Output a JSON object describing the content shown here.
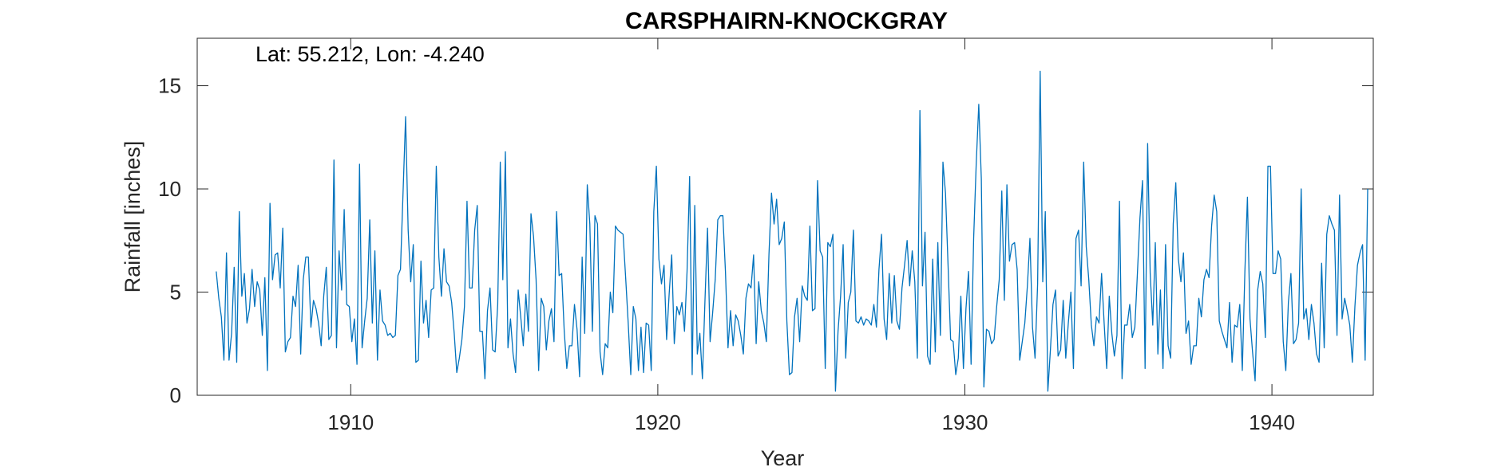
{
  "chart_data": {
    "type": "line",
    "title": "CARSPHAIRN-KNOCKGRAY",
    "annotation": "Lat: 55.212, Lon: -4.240",
    "xlabel": "Year",
    "ylabel": "Rainfall [inches]",
    "xlim": [
      1905.0,
      1943.3
    ],
    "ylim": [
      0,
      17.3
    ],
    "xticks": [
      1910,
      1920,
      1930,
      1940
    ],
    "yticks": [
      0,
      5,
      10,
      15
    ],
    "grid": false,
    "box": true,
    "color": "#0072BD",
    "x_start": 1905.62,
    "x_step": 0.08333,
    "series": [
      {
        "values": [
          6.0,
          4.7,
          3.8,
          1.7,
          6.9,
          1.7,
          3.0,
          6.2,
          1.6,
          8.9,
          4.8,
          5.9,
          3.5,
          4.2,
          6.1,
          4.3,
          5.5,
          5.1,
          2.9,
          5.7,
          1.2,
          9.3,
          5.6,
          6.8,
          6.9,
          5.2,
          8.1,
          2.1,
          2.6,
          2.8,
          4.8,
          4.3,
          6.3,
          2.0,
          5.6,
          6.7,
          6.7,
          3.3,
          4.6,
          4.2,
          3.5,
          2.4,
          4.8,
          6.2,
          2.7,
          2.9,
          11.4,
          2.3,
          7.0,
          5.1,
          9.0,
          4.4,
          4.3,
          2.6,
          3.7,
          1.5,
          11.2,
          2.3,
          3.6,
          4.7,
          8.5,
          3.5,
          7.0,
          1.7,
          5.1,
          3.6,
          3.4,
          2.9,
          3.0,
          2.8,
          2.9,
          5.8,
          6.1,
          9.8,
          13.5,
          8.0,
          5.5,
          7.3,
          1.6,
          1.7,
          6.5,
          3.5,
          4.6,
          2.8,
          5.1,
          5.2,
          11.1,
          6.7,
          4.8,
          7.1,
          5.5,
          5.3,
          4.5,
          3.0,
          1.1,
          1.8,
          2.7,
          4.3,
          9.4,
          5.2,
          5.2,
          8.0,
          9.2,
          3.1,
          3.1,
          0.8,
          4.1,
          5.2,
          2.2,
          2.1,
          4.4,
          11.3,
          5.6,
          11.8,
          2.3,
          3.7,
          2.0,
          1.1,
          5.1,
          3.8,
          2.4,
          4.9,
          3.1,
          8.8,
          7.7,
          5.6,
          1.2,
          4.7,
          4.3,
          2.2,
          3.6,
          4.2,
          2.6,
          8.9,
          5.8,
          5.9,
          3.1,
          1.3,
          2.4,
          2.4,
          4.4,
          3.2,
          0.9,
          6.7,
          3.0,
          10.2,
          8.3,
          3.1,
          8.7,
          8.3,
          2.1,
          1.0,
          2.5,
          2.3,
          5.0,
          4.0,
          8.2,
          8.0,
          7.9,
          7.8,
          5.7,
          3.5,
          1.0,
          4.3,
          3.7,
          1.2,
          3.3,
          1.1,
          3.5,
          3.4,
          1.2,
          8.9,
          11.1,
          6.6,
          5.4,
          6.3,
          2.7,
          4.9,
          6.8,
          2.5,
          4.3,
          3.9,
          4.5,
          3.1,
          6.0,
          10.6,
          1.0,
          9.2,
          2.0,
          3.0,
          0.8,
          4.6,
          8.1,
          2.6,
          4.0,
          5.6,
          8.5,
          8.7,
          8.7,
          6.0,
          2.3,
          4.1,
          2.4,
          3.9,
          3.6,
          2.9,
          2.0,
          4.7,
          5.4,
          5.2,
          6.8,
          2.5,
          5.5,
          4.1,
          3.5,
          2.6,
          6.8,
          9.8,
          8.3,
          9.5,
          7.3,
          7.6,
          8.4,
          3.6,
          1.0,
          1.1,
          3.8,
          4.7,
          2.6,
          5.3,
          4.8,
          4.6,
          8.2,
          4.1,
          4.2,
          10.4,
          7.0,
          6.7,
          1.3,
          7.4,
          7.2,
          7.8,
          0.2,
          3.1,
          4.8,
          7.3,
          1.8,
          4.5,
          5.0,
          8.0,
          3.6,
          3.5,
          3.8,
          3.4,
          3.7,
          3.6,
          3.4,
          4.4,
          3.3,
          6.1,
          7.8,
          3.7,
          2.7,
          5.9,
          3.5,
          5.8,
          3.6,
          3.2,
          5.2,
          6.3,
          7.5,
          5.3,
          7.0,
          5.5,
          1.8,
          13.8,
          5.3,
          7.9,
          1.9,
          1.5,
          6.6,
          2.1,
          7.4,
          2.9,
          11.3,
          9.8,
          6.3,
          2.7,
          2.6,
          1.0,
          1.8,
          4.8,
          1.3,
          4.2,
          6.0,
          1.5,
          7.6,
          11.2,
          14.1,
          10.5,
          0.4,
          3.2,
          3.1,
          2.5,
          2.7,
          4.3,
          5.6,
          9.9,
          4.6,
          10.2,
          6.5,
          7.3,
          7.4,
          6.1,
          1.7,
          2.6,
          3.5,
          5.3,
          7.6,
          3.3,
          1.8,
          5.4,
          15.7,
          5.5,
          8.9,
          0.2,
          2.2,
          4.4,
          5.1,
          1.9,
          2.2,
          4.6,
          1.8,
          3.5,
          5.0,
          1.3,
          7.6,
          8.0,
          5.3,
          11.3,
          7.2,
          5.6,
          3.4,
          2.4,
          3.8,
          3.5,
          5.9,
          3.5,
          1.3,
          4.8,
          3.0,
          1.9,
          2.9,
          9.4,
          0.8,
          3.4,
          3.4,
          4.4,
          2.8,
          3.3,
          5.9,
          8.6,
          10.4,
          1.3,
          12.2,
          5.9,
          3.4,
          7.4,
          2.0,
          5.1,
          1.3,
          7.3,
          2.4,
          1.8,
          8.3,
          10.3,
          6.6,
          5.5,
          6.9,
          3.0,
          3.6,
          1.5,
          2.4,
          2.4,
          4.7,
          3.8,
          5.6,
          6.1,
          5.7,
          8.2,
          9.7,
          8.9,
          3.6,
          3.1,
          2.7,
          2.3,
          4.5,
          1.6,
          3.4,
          3.3,
          4.4,
          1.2,
          6.0,
          9.6,
          3.7,
          2.1,
          0.7,
          5.1,
          6.0,
          5.4,
          2.8,
          11.1,
          11.1,
          5.9,
          5.9,
          7.0,
          6.6,
          2.6,
          1.2,
          4.5,
          5.9,
          2.5,
          2.7,
          3.5,
          10.0,
          3.7,
          4.2,
          2.7,
          4.4,
          3.5,
          2.0,
          1.6,
          6.4,
          2.3,
          7.8,
          8.7,
          8.3,
          8.0,
          2.9,
          9.7,
          3.7,
          4.7,
          4.1,
          3.4,
          1.6,
          4.3,
          6.3,
          6.9,
          7.3,
          1.7,
          10.0
        ]
      }
    ]
  }
}
